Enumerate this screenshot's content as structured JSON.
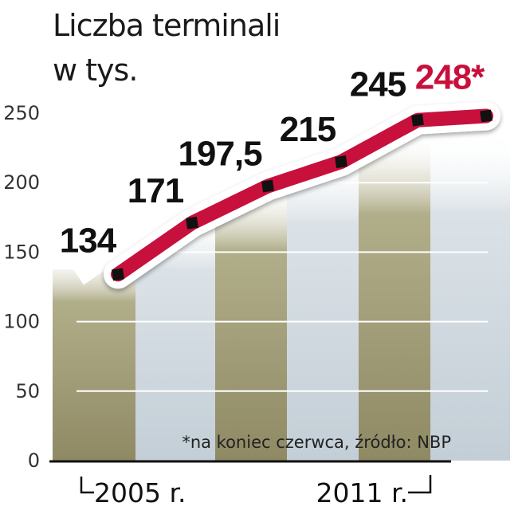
{
  "title_lines": [
    "Liczba terminali",
    "w tys."
  ],
  "footnote": "*na koniec czerwca, źródło: NBP",
  "x_labels": [
    "2005 r.",
    "2011 r."
  ],
  "colors": {
    "line": "#c8103c",
    "band_dark": "#b1ae8a",
    "band_light": "#d2dbe1",
    "last_label": "#c8103c"
  },
  "chart_data": {
    "type": "line",
    "title": "Liczba terminali w tys.",
    "categories": [
      "2005 r.",
      "",
      "",
      "",
      "",
      "2011 r."
    ],
    "values": [
      134,
      171,
      197.5,
      215,
      245,
      248
    ],
    "labels": [
      "134",
      "171",
      "197,5",
      "215",
      "245",
      "248*"
    ],
    "yticks": [
      0,
      50,
      100,
      150,
      200,
      250
    ],
    "ylim": [
      0,
      250
    ],
    "grid": true,
    "legend": "none"
  }
}
